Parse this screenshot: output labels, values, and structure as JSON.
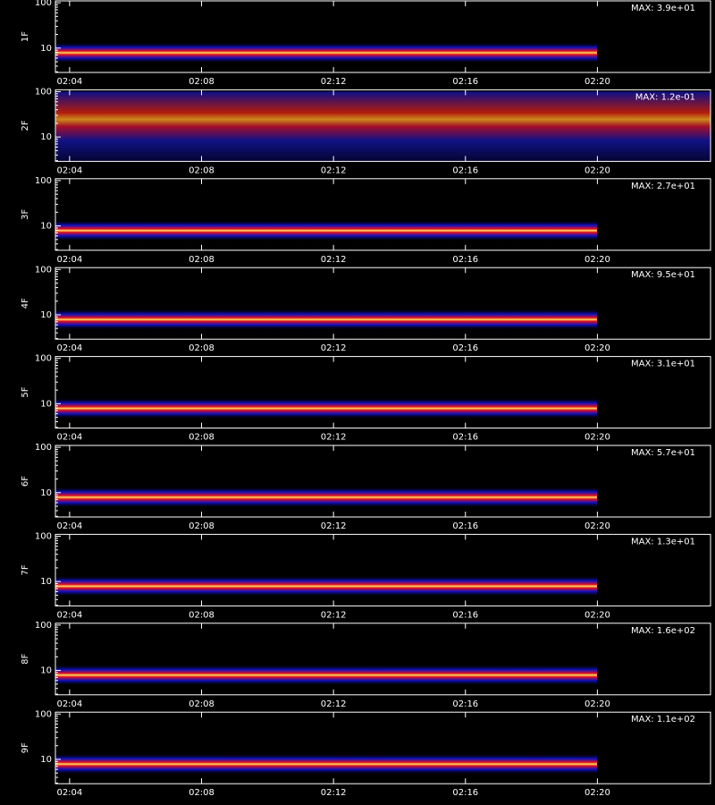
{
  "chart_data": [
    {
      "type": "heatmap",
      "ylabel": "1F",
      "annotation": "MAX: 3.9e+01",
      "log_y": true,
      "ylim": [
        2.9,
        110
      ],
      "yticks": [
        10,
        100
      ],
      "xlim": [
        3.57,
        23.43
      ],
      "xticks": [
        {
          "value": 4,
          "label": "02:04"
        },
        {
          "value": 8,
          "label": "02:08"
        },
        {
          "value": 12,
          "label": "02:12"
        },
        {
          "value": 16,
          "label": "02:16"
        },
        {
          "value": 20,
          "label": "02:20"
        }
      ]
    },
    {
      "type": "heatmap",
      "ylabel": "2F",
      "annotation": "MAX: 1.2e-01",
      "log_y": true,
      "ylim": [
        2.9,
        110
      ],
      "yticks": [
        10,
        100
      ],
      "xlim": [
        3.57,
        23.43
      ],
      "xticks": [
        {
          "value": 4,
          "label": "02:04"
        },
        {
          "value": 8,
          "label": "02:08"
        },
        {
          "value": 12,
          "label": "02:12"
        },
        {
          "value": 16,
          "label": "02:16"
        },
        {
          "value": 20,
          "label": "02:20"
        }
      ]
    },
    {
      "type": "heatmap",
      "ylabel": "3F",
      "annotation": "MAX: 2.7e+01",
      "log_y": true,
      "ylim": [
        2.9,
        110
      ],
      "yticks": [
        10,
        100
      ],
      "xlim": [
        3.57,
        23.43
      ],
      "xticks": [
        {
          "value": 4,
          "label": "02:04"
        },
        {
          "value": 8,
          "label": "02:08"
        },
        {
          "value": 12,
          "label": "02:12"
        },
        {
          "value": 16,
          "label": "02:16"
        },
        {
          "value": 20,
          "label": "02:20"
        }
      ]
    },
    {
      "type": "heatmap",
      "ylabel": "4F",
      "annotation": "MAX: 9.5e+01",
      "log_y": true,
      "ylim": [
        2.9,
        110
      ],
      "yticks": [
        10,
        100
      ],
      "xlim": [
        3.57,
        23.43
      ],
      "xticks": [
        {
          "value": 4,
          "label": "02:04"
        },
        {
          "value": 8,
          "label": "02:08"
        },
        {
          "value": 12,
          "label": "02:12"
        },
        {
          "value": 16,
          "label": "02:16"
        },
        {
          "value": 20,
          "label": "02:20"
        }
      ]
    },
    {
      "type": "heatmap",
      "ylabel": "5F",
      "annotation": "MAX: 3.1e+01",
      "log_y": true,
      "ylim": [
        2.9,
        110
      ],
      "yticks": [
        10,
        100
      ],
      "xlim": [
        3.57,
        23.43
      ],
      "xticks": [
        {
          "value": 4,
          "label": "02:04"
        },
        {
          "value": 8,
          "label": "02:08"
        },
        {
          "value": 12,
          "label": "02:12"
        },
        {
          "value": 16,
          "label": "02:16"
        },
        {
          "value": 20,
          "label": "02:20"
        }
      ]
    },
    {
      "type": "heatmap",
      "ylabel": "6F",
      "annotation": "MAX: 5.7e+01",
      "log_y": true,
      "ylim": [
        2.9,
        110
      ],
      "yticks": [
        10,
        100
      ],
      "xlim": [
        3.57,
        23.43
      ],
      "xticks": [
        {
          "value": 4,
          "label": "02:04"
        },
        {
          "value": 8,
          "label": "02:08"
        },
        {
          "value": 12,
          "label": "02:12"
        },
        {
          "value": 16,
          "label": "02:16"
        },
        {
          "value": 20,
          "label": "02:20"
        }
      ]
    },
    {
      "type": "heatmap",
      "ylabel": "7F",
      "annotation": "MAX: 1.3e+01",
      "log_y": true,
      "ylim": [
        2.9,
        110
      ],
      "yticks": [
        10,
        100
      ],
      "xlim": [
        3.57,
        23.43
      ],
      "xticks": [
        {
          "value": 4,
          "label": "02:04"
        },
        {
          "value": 8,
          "label": "02:08"
        },
        {
          "value": 12,
          "label": "02:12"
        },
        {
          "value": 16,
          "label": "02:16"
        },
        {
          "value": 20,
          "label": "02:20"
        }
      ]
    },
    {
      "type": "heatmap",
      "ylabel": "8F",
      "annotation": "MAX: 1.6e+02",
      "log_y": true,
      "ylim": [
        2.9,
        110
      ],
      "yticks": [
        10,
        100
      ],
      "xlim": [
        3.57,
        23.43
      ],
      "xticks": [
        {
          "value": 4,
          "label": "02:04"
        },
        {
          "value": 8,
          "label": "02:08"
        },
        {
          "value": 12,
          "label": "02:12"
        },
        {
          "value": 16,
          "label": "02:16"
        },
        {
          "value": 20,
          "label": "02:20"
        }
      ]
    },
    {
      "type": "heatmap",
      "ylabel": "9F",
      "annotation": "MAX: 1.1e+02",
      "log_y": true,
      "ylim": [
        2.9,
        110
      ],
      "yticks": [
        10,
        100
      ],
      "xlim": [
        3.57,
        23.43
      ],
      "xticks": [
        {
          "value": 4,
          "label": "02:04"
        },
        {
          "value": 8,
          "label": "02:08"
        },
        {
          "value": 12,
          "label": "02:12"
        },
        {
          "value": 16,
          "label": "02:16"
        },
        {
          "value": 20,
          "label": "02:20"
        }
      ]
    }
  ]
}
